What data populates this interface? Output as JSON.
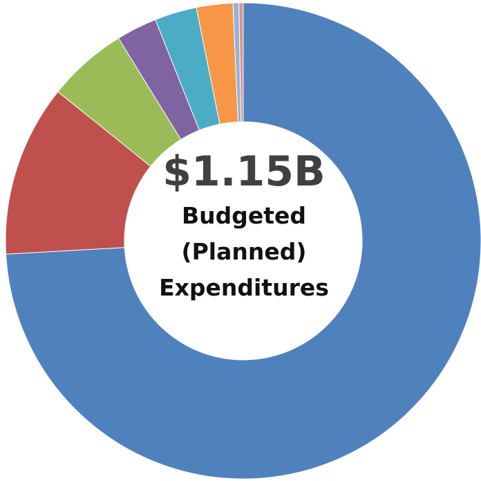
{
  "chart_data": {
    "type": "pie",
    "donut": true,
    "total_label": "$1.15B",
    "center_lines": [
      "Budgeted",
      "(Planned)",
      "Expenditures"
    ],
    "title": "",
    "legend": "none",
    "slices": [
      {
        "value": 75.0,
        "color": "#4f81bd"
      },
      {
        "value": 11.8,
        "color": "#c0504d"
      },
      {
        "value": 5.5,
        "color": "#9bbb59"
      },
      {
        "value": 2.8,
        "color": "#8064a2"
      },
      {
        "value": 2.9,
        "color": "#4bacc6"
      },
      {
        "value": 2.5,
        "color": "#f79646"
      },
      {
        "value": 0.4,
        "color": "#95b3d7"
      },
      {
        "value": 0.3,
        "color": "#d99694"
      }
    ]
  }
}
